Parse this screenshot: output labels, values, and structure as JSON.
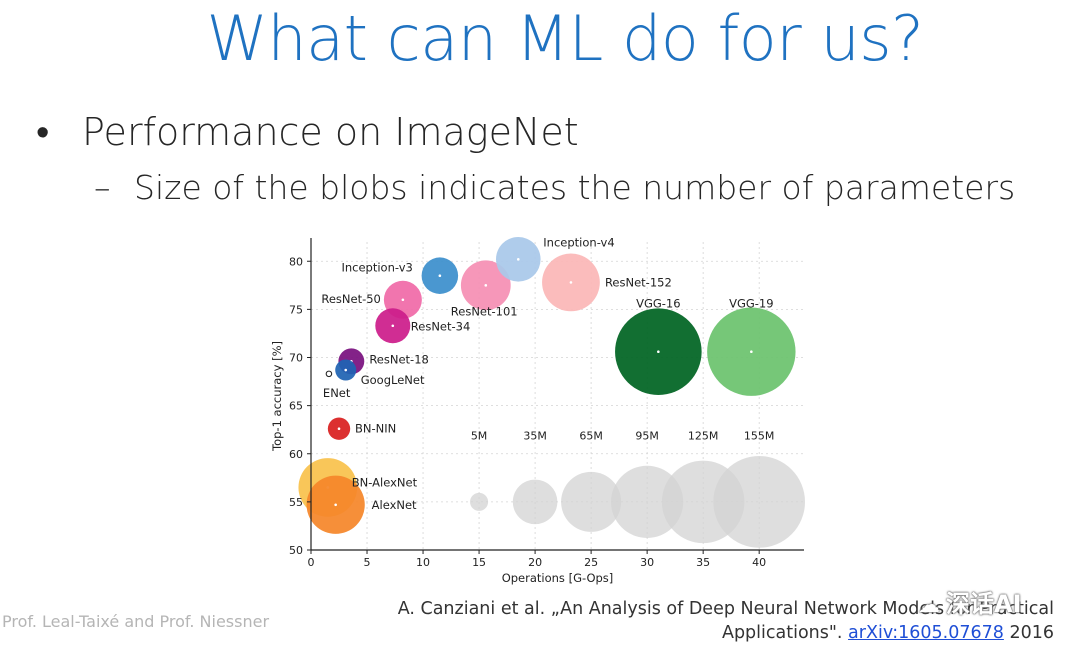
{
  "slide": {
    "title": "What can ML do for us?",
    "bullet": "Performance on ImageNet",
    "bullet_symbol": "•",
    "sub_bullet": "Size of the blobs indicates the number of parameters",
    "sub_symbol": "–",
    "footer": "Prof. Leal-Taixé and Prof. Niessner",
    "citation_line1": "A. Canziani et al. „An Analysis of Deep Neural Network Models for Practical",
    "citation_line2_prefix": "Applications\". ",
    "citation_link": "arXiv:1605.07678",
    "citation_year": " 2016",
    "watermark": "深话AI",
    "watermark_icon": "☁"
  },
  "chart_data": {
    "type": "scatter",
    "xlabel": "Operations [G-Ops]",
    "ylabel": "Top-1 accuracy [%]",
    "xlim": [
      0,
      44
    ],
    "ylim": [
      50,
      82
    ],
    "xticks": [
      0,
      5,
      10,
      15,
      20,
      25,
      30,
      35,
      40
    ],
    "yticks": [
      50,
      55,
      60,
      65,
      70,
      75,
      80
    ],
    "grid": true,
    "series": [
      {
        "name": "Inception-v4",
        "x": 18.5,
        "y": 80.2,
        "params_m": 35,
        "color": "#a9c8ea"
      },
      {
        "name": "Inception-v3",
        "x": 11.5,
        "y": 78.5,
        "params_m": 23,
        "color": "#3c8fcc"
      },
      {
        "name": "ResNet-50",
        "x": 8.2,
        "y": 76.0,
        "params_m": 25,
        "color": "#f06aa8"
      },
      {
        "name": "ResNet-101",
        "x": 15.6,
        "y": 77.5,
        "params_m": 44,
        "color": "#f58fb4"
      },
      {
        "name": "ResNet-152",
        "x": 23.2,
        "y": 77.8,
        "params_m": 60,
        "color": "#fbb7b7"
      },
      {
        "name": "ResNet-34",
        "x": 7.3,
        "y": 73.3,
        "params_m": 21,
        "color": "#cc1d8b"
      },
      {
        "name": "ResNet-18",
        "x": 3.6,
        "y": 69.6,
        "params_m": 11,
        "color": "#7a117f"
      },
      {
        "name": "GoogLeNet",
        "x": 3.1,
        "y": 68.7,
        "params_m": 7,
        "color": "#1f63b3"
      },
      {
        "name": "ENet",
        "x": 1.6,
        "y": 68.3,
        "params_m": 0.4,
        "color": "#111111"
      },
      {
        "name": "BN-NIN",
        "x": 2.5,
        "y": 62.6,
        "params_m": 8,
        "color": "#d92020"
      },
      {
        "name": "BN-AlexNet",
        "x": 1.5,
        "y": 56.5,
        "params_m": 62,
        "color": "#f9c24c"
      },
      {
        "name": "AlexNet",
        "x": 2.2,
        "y": 54.7,
        "params_m": 61,
        "color": "#f5862a"
      },
      {
        "name": "VGG-16",
        "x": 31.0,
        "y": 70.6,
        "params_m": 138,
        "color": "#006422"
      },
      {
        "name": "VGG-19",
        "x": 39.3,
        "y": 70.6,
        "params_m": 144,
        "color": "#6cc36e"
      }
    ],
    "size_legend": [
      {
        "label": "5M",
        "x": 15,
        "y": 55,
        "params_m": 5
      },
      {
        "label": "35M",
        "x": 20,
        "y": 55,
        "params_m": 35
      },
      {
        "label": "65M",
        "x": 25,
        "y": 55,
        "params_m": 65
      },
      {
        "label": "95M",
        "x": 30,
        "y": 55,
        "params_m": 95
      },
      {
        "label": "125M",
        "x": 35,
        "y": 55,
        "params_m": 125
      },
      {
        "label": "155M",
        "x": 40,
        "y": 55,
        "params_m": 155
      }
    ]
  }
}
